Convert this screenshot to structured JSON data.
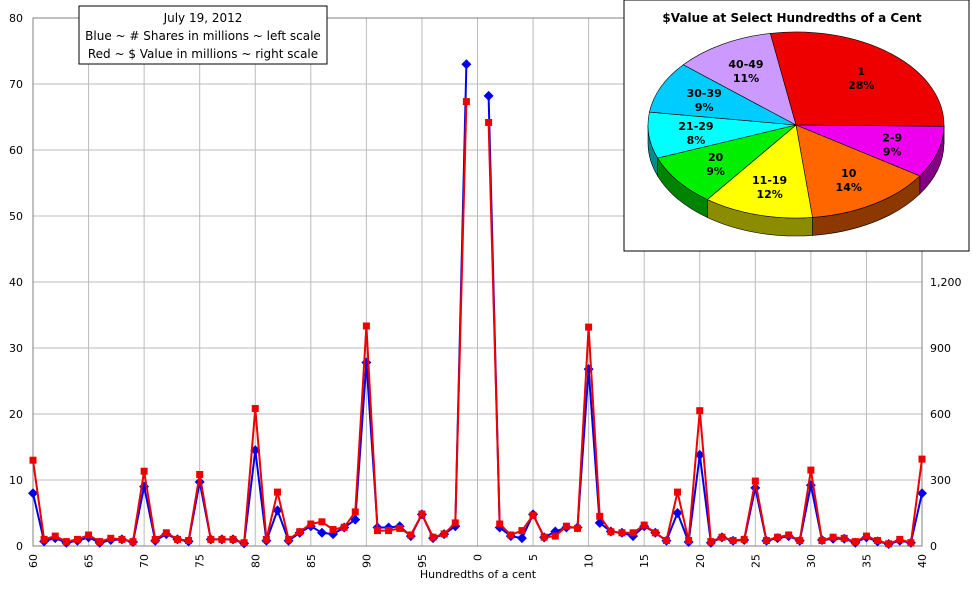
{
  "chart_data": [
    {
      "type": "line",
      "legend": {
        "lines": [
          "July 19, 2012",
          "Blue ~ # Shares in millions ~ left scale",
          "Red ~ $ Value in millions ~ right scale"
        ],
        "placement": "top-left"
      },
      "xlabel": "Hundredths of a cent",
      "x": [
        60,
        61,
        62,
        63,
        64,
        65,
        66,
        67,
        68,
        69,
        70,
        71,
        72,
        73,
        74,
        75,
        76,
        77,
        78,
        79,
        80,
        81,
        82,
        83,
        84,
        85,
        86,
        87,
        88,
        89,
        90,
        91,
        92,
        93,
        94,
        95,
        96,
        97,
        98,
        99,
        0,
        1,
        2,
        3,
        4,
        5,
        6,
        7,
        8,
        9,
        10,
        11,
        12,
        13,
        14,
        15,
        16,
        17,
        18,
        19,
        20,
        21,
        22,
        23,
        24,
        25,
        26,
        27,
        28,
        29,
        30,
        31,
        32,
        33,
        34,
        35,
        36,
        37,
        38,
        39,
        40
      ],
      "x_tick_labels": [
        "60",
        "65",
        "70",
        "75",
        "80",
        "85",
        "90",
        "95",
        "0",
        "5",
        "10",
        "15",
        "20",
        "25",
        "30",
        "35",
        "40"
      ],
      "y_left": {
        "range": [
          0,
          80
        ],
        "ticks": [
          0,
          10,
          20,
          30,
          40,
          50,
          60,
          70,
          80
        ]
      },
      "y_right": {
        "range": [
          0,
          2400
        ],
        "tick_labels": [
          "0",
          "300",
          "600",
          "900",
          "1,200"
        ]
      },
      "grid": true,
      "series": [
        {
          "color": "#0000ee",
          "marker": "diamond",
          "axis": "left",
          "values": [
            8.0,
            0.7,
            1.2,
            0.5,
            0.8,
            1.3,
            0.5,
            0.9,
            1.0,
            0.6,
            9.0,
            0.8,
            1.8,
            1.0,
            0.7,
            9.7,
            1.0,
            1.0,
            1.0,
            0.4,
            14.5,
            0.8,
            5.4,
            0.8,
            2.0,
            3.0,
            2.0,
            1.8,
            2.8,
            4.0,
            27.8,
            2.8,
            2.8,
            3.0,
            1.5,
            4.8,
            1.2,
            1.8,
            3.0,
            73.0,
            null,
            68.2,
            2.8,
            1.5,
            1.2,
            4.8,
            1.3,
            2.2,
            2.8,
            2.8,
            26.8,
            3.5,
            2.2,
            2.0,
            1.5,
            3.0,
            2.0,
            0.8,
            5.0,
            0.6,
            13.8,
            0.5,
            1.3,
            0.8,
            0.9,
            8.8,
            0.8,
            1.2,
            1.5,
            0.8,
            9.2,
            0.9,
            1.1,
            1.1,
            0.5,
            1.3,
            0.7,
            0.3,
            0.8,
            0.5,
            8.0
          ]
        },
        {
          "color": "#ee0000",
          "marker": "square",
          "axis": "right",
          "values": [
            390,
            30,
            45,
            20,
            30,
            50,
            20,
            35,
            30,
            20,
            340,
            30,
            60,
            30,
            25,
            325,
            30,
            30,
            30,
            15,
            625,
            30,
            245,
            30,
            65,
            100,
            110,
            75,
            85,
            155,
            1000,
            70,
            70,
            80,
            50,
            145,
            40,
            55,
            105,
            2020,
            null,
            1925,
            100,
            50,
            70,
            140,
            40,
            45,
            90,
            80,
            995,
            135,
            65,
            60,
            60,
            95,
            60,
            25,
            245,
            25,
            615,
            20,
            40,
            25,
            30,
            295,
            25,
            40,
            50,
            25,
            345,
            25,
            40,
            35,
            20,
            45,
            25,
            10,
            30,
            15,
            395
          ]
        }
      ]
    },
    {
      "type": "pie",
      "title": "$Value at Select Hundredths of a Cent",
      "slices": [
        {
          "label": "1",
          "value": 28,
          "pct_label": "28%",
          "color": "#ee0000"
        },
        {
          "label": "2-9",
          "value": 9,
          "pct_label": "9%",
          "color": "#ee00ee"
        },
        {
          "label": "10",
          "value": 14,
          "pct_label": "14%",
          "color": "#ff6600"
        },
        {
          "label": "11-19",
          "value": 12,
          "pct_label": "12%",
          "color": "#ffff00"
        },
        {
          "label": "20",
          "value": 9,
          "pct_label": "9%",
          "color": "#00ee00"
        },
        {
          "label": "21-29",
          "value": 8,
          "pct_label": "8%",
          "color": "#00ffff"
        },
        {
          "label": "30-39",
          "value": 9,
          "pct_label": "9%",
          "color": "#00ccff"
        },
        {
          "label": "40-49",
          "value": 11,
          "pct_label": "11%",
          "color": "#cc99ff"
        }
      ]
    }
  ]
}
